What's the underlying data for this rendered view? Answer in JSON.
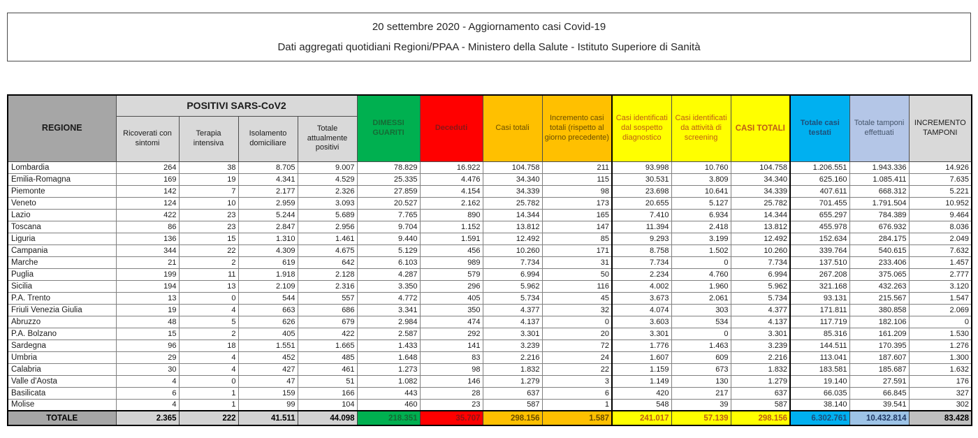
{
  "title": {
    "line1": "20 settembre 2020 - Aggiornamento casi Covid-19",
    "line2": "Dati aggregati quotidiani Regioni/PPAA - Ministero della Salute - Istituto Superiore di Sanità"
  },
  "table": {
    "group_header": "POSITIVI SARS-CoV2",
    "columns": [
      {
        "label": "REGIONE"
      },
      {
        "label": "Ricoverati con sintomi"
      },
      {
        "label": "Terapia intensiva"
      },
      {
        "label": "Isolamento domiciliare"
      },
      {
        "label": "Totale attualmente positivi"
      },
      {
        "label": "DIMESSI GUARITI"
      },
      {
        "label": "Deceduti"
      },
      {
        "label": "Casi totali"
      },
      {
        "label": "Incremento casi totali (rispetto al giorno precedente)"
      },
      {
        "label": "Casi identificati dal sospetto diagnostico"
      },
      {
        "label": "Casi identificati da attività di screening"
      },
      {
        "label": "CASI TOTALI"
      },
      {
        "label": "Totale casi testati"
      },
      {
        "label": "Totale tamponi effettuati"
      },
      {
        "label": "INCREMENTO TAMPONI"
      }
    ],
    "rows": [
      [
        "Lombardia",
        "264",
        "38",
        "8.705",
        "9.007",
        "78.829",
        "16.922",
        "104.758",
        "211",
        "93.998",
        "10.760",
        "104.758",
        "1.206.551",
        "1.943.336",
        "14.926"
      ],
      [
        "Emilia-Romagna",
        "169",
        "19",
        "4.341",
        "4.529",
        "25.335",
        "4.476",
        "34.340",
        "115",
        "30.531",
        "3.809",
        "34.340",
        "625.160",
        "1.085.411",
        "7.635"
      ],
      [
        "Piemonte",
        "142",
        "7",
        "2.177",
        "2.326",
        "27.859",
        "4.154",
        "34.339",
        "98",
        "23.698",
        "10.641",
        "34.339",
        "407.611",
        "668.312",
        "5.221"
      ],
      [
        "Veneto",
        "124",
        "10",
        "2.959",
        "3.093",
        "20.527",
        "2.162",
        "25.782",
        "173",
        "20.655",
        "5.127",
        "25.782",
        "701.455",
        "1.791.504",
        "10.952"
      ],
      [
        "Lazio",
        "422",
        "23",
        "5.244",
        "5.689",
        "7.765",
        "890",
        "14.344",
        "165",
        "7.410",
        "6.934",
        "14.344",
        "655.297",
        "784.389",
        "9.464"
      ],
      [
        "Toscana",
        "86",
        "23",
        "2.847",
        "2.956",
        "9.704",
        "1.152",
        "13.812",
        "147",
        "11.394",
        "2.418",
        "13.812",
        "455.978",
        "676.932",
        "8.036"
      ],
      [
        "Liguria",
        "136",
        "15",
        "1.310",
        "1.461",
        "9.440",
        "1.591",
        "12.492",
        "85",
        "9.293",
        "3.199",
        "12.492",
        "152.634",
        "284.175",
        "2.049"
      ],
      [
        "Campania",
        "344",
        "22",
        "4.309",
        "4.675",
        "5.129",
        "456",
        "10.260",
        "171",
        "8.758",
        "1.502",
        "10.260",
        "339.764",
        "540.615",
        "7.632"
      ],
      [
        "Marche",
        "21",
        "2",
        "619",
        "642",
        "6.103",
        "989",
        "7.734",
        "31",
        "7.734",
        "0",
        "7.734",
        "137.510",
        "233.406",
        "1.457"
      ],
      [
        "Puglia",
        "199",
        "11",
        "1.918",
        "2.128",
        "4.287",
        "579",
        "6.994",
        "50",
        "2.234",
        "4.760",
        "6.994",
        "267.208",
        "375.065",
        "2.777"
      ],
      [
        "Sicilia",
        "194",
        "13",
        "2.109",
        "2.316",
        "3.350",
        "296",
        "5.962",
        "116",
        "4.002",
        "1.960",
        "5.962",
        "321.168",
        "432.263",
        "3.120"
      ],
      [
        "P.A. Trento",
        "13",
        "0",
        "544",
        "557",
        "4.772",
        "405",
        "5.734",
        "45",
        "3.673",
        "2.061",
        "5.734",
        "93.131",
        "215.567",
        "1.547"
      ],
      [
        "Friuli Venezia Giulia",
        "19",
        "4",
        "663",
        "686",
        "3.341",
        "350",
        "4.377",
        "32",
        "4.074",
        "303",
        "4.377",
        "171.811",
        "380.858",
        "2.069"
      ],
      [
        "Abruzzo",
        "48",
        "5",
        "626",
        "679",
        "2.984",
        "474",
        "4.137",
        "0",
        "3.603",
        "534",
        "4.137",
        "117.719",
        "182.106",
        "0"
      ],
      [
        "P.A. Bolzano",
        "15",
        "2",
        "405",
        "422",
        "2.587",
        "292",
        "3.301",
        "20",
        "3.301",
        "0",
        "3.301",
        "85.316",
        "161.209",
        "1.530"
      ],
      [
        "Sardegna",
        "96",
        "18",
        "1.551",
        "1.665",
        "1.433",
        "141",
        "3.239",
        "72",
        "1.776",
        "1.463",
        "3.239",
        "144.511",
        "170.395",
        "1.276"
      ],
      [
        "Umbria",
        "29",
        "4",
        "452",
        "485",
        "1.648",
        "83",
        "2.216",
        "24",
        "1.607",
        "609",
        "2.216",
        "113.041",
        "187.607",
        "1.300"
      ],
      [
        "Calabria",
        "30",
        "4",
        "427",
        "461",
        "1.273",
        "98",
        "1.832",
        "22",
        "1.159",
        "673",
        "1.832",
        "183.581",
        "185.687",
        "1.632"
      ],
      [
        "Valle d'Aosta",
        "4",
        "0",
        "47",
        "51",
        "1.082",
        "146",
        "1.279",
        "3",
        "1.149",
        "130",
        "1.279",
        "19.140",
        "27.591",
        "176"
      ],
      [
        "Basilicata",
        "6",
        "1",
        "159",
        "166",
        "443",
        "28",
        "637",
        "6",
        "420",
        "217",
        "637",
        "66.035",
        "66.845",
        "327"
      ],
      [
        "Molise",
        "4",
        "1",
        "99",
        "104",
        "460",
        "23",
        "587",
        "1",
        "548",
        "39",
        "587",
        "38.140",
        "39.541",
        "302"
      ]
    ],
    "total": {
      "label": "TOTALE",
      "values": [
        "2.365",
        "222",
        "41.511",
        "44.098",
        "218.351",
        "35.707",
        "298.156",
        "1.587",
        "241.017",
        "57.139",
        "298.156",
        "6.302.761",
        "10.432.814",
        "83.428"
      ]
    }
  },
  "colors": {
    "green": "#00B050",
    "red": "#FF0000",
    "amber": "#FFC000",
    "yellow": "#FFFF00",
    "cyan": "#00B0F0",
    "periwinkle": "#B4C6E7",
    "periwinkle_total": "#9DC3E6",
    "gray_header": "#A6A6A6",
    "light_gray": "#D9D9D9",
    "total_gray": "#D3D3D3",
    "incr_total_gray": "#BFBFBF",
    "green_text": "#156B35",
    "red_text": "#8B1515",
    "amber_text": "#6B4E00",
    "yellow_text": "#BF5B17",
    "cyan_text": "#1F4E79",
    "peri_text": "#44546A"
  }
}
